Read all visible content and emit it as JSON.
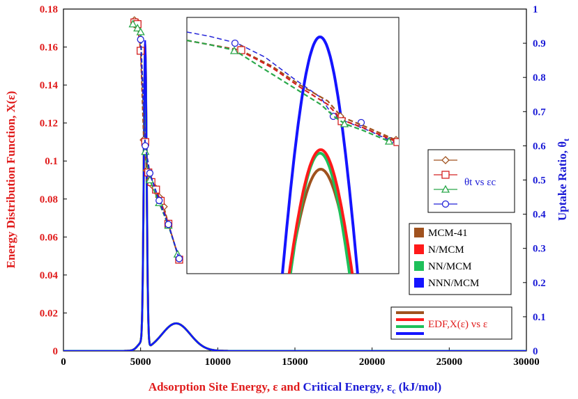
{
  "colors": {
    "red": "#e01b1b",
    "blue": "#1a1ad6",
    "mcm41": "#a0521e",
    "nmcm": "#ff1a1a",
    "nnmcm": "#1ec05a",
    "nnnmcm": "#1414ff",
    "dash_mcm41": "#a0521e",
    "dash_nmcm": "#d42020",
    "dash_nnmcm": "#2aa84a",
    "dash_nnnmcm": "#2222d8"
  },
  "chart_data": {
    "type": "line",
    "xlim": [
      0,
      30000
    ],
    "ylim_left": [
      0,
      0.18
    ],
    "ylim_right": [
      0,
      1
    ],
    "x_ticks": [
      "0",
      "5000",
      "10000",
      "15000",
      "20000",
      "25000",
      "30000"
    ],
    "y_left_ticks": [
      "0",
      "0.02",
      "0.04",
      "0.06",
      "0.08",
      "0.1",
      "0.12",
      "0.14",
      "0.16",
      "0.18"
    ],
    "y_right_ticks": [
      "0",
      "0.1",
      "0.2",
      "0.3",
      "0.4",
      "0.5",
      "0.6",
      "0.7",
      "0.8",
      "0.9",
      "1"
    ],
    "xlabel_part1": "Adsorption Site Energy, ε and ",
    "xlabel_part2": "Critical Energy, ε",
    "xlabel_sub": "c",
    "xlabel_part3": " (kJ/mol)",
    "ylabel_left": "Energy Distribution Function, X(ε)",
    "ylabel_right_main": "Uptake Ratio, θ",
    "ylabel_right_sub": "t",
    "legend_markers_label": "θt vs εc",
    "legend_series": [
      "MCM-41",
      "N/MCM",
      "NN/MCM",
      "NNN/MCM"
    ],
    "legend_edf_label": "EDF,X(ε) vs ε",
    "edf_peak": {
      "x": 5300,
      "y_left": 0.16
    },
    "edf_bump": {
      "x": 7300,
      "y_left": 0.014
    },
    "uptake_series": [
      {
        "name": "MCM-41",
        "points": [
          [
            4600,
            0.967
          ],
          [
            4800,
            0.961
          ],
          [
            5000,
            0.878
          ],
          [
            5200,
            0.617
          ],
          [
            5400,
            0.528
          ],
          [
            5600,
            0.5
          ],
          [
            5800,
            0.483
          ],
          [
            6000,
            0.467
          ],
          [
            6200,
            0.45
          ],
          [
            6500,
            0.422
          ],
          [
            6800,
            0.372
          ],
          [
            7500,
            0.267
          ]
        ]
      },
      {
        "name": "N/MCM",
        "points": [
          [
            4600,
            0.961
          ],
          [
            4800,
            0.956
          ],
          [
            5000,
            0.878
          ],
          [
            5300,
            0.611
          ],
          [
            5500,
            0.522
          ],
          [
            5700,
            0.494
          ],
          [
            6000,
            0.472
          ],
          [
            6300,
            0.439
          ],
          [
            6800,
            0.372
          ],
          [
            7500,
            0.267
          ]
        ]
      },
      {
        "name": "NN/MCM",
        "points": [
          [
            4500,
            0.956
          ],
          [
            4800,
            0.944
          ],
          [
            5000,
            0.933
          ],
          [
            5300,
            0.583
          ],
          [
            5600,
            0.5
          ],
          [
            6200,
            0.433
          ],
          [
            6800,
            0.367
          ],
          [
            7400,
            0.283
          ]
        ]
      },
      {
        "name": "NNN/MCM",
        "points": [
          [
            5000,
            0.911
          ],
          [
            5300,
            0.6
          ],
          [
            5600,
            0.52
          ],
          [
            6200,
            0.44
          ],
          [
            6800,
            0.37
          ],
          [
            7500,
            0.27
          ]
        ]
      }
    ]
  }
}
